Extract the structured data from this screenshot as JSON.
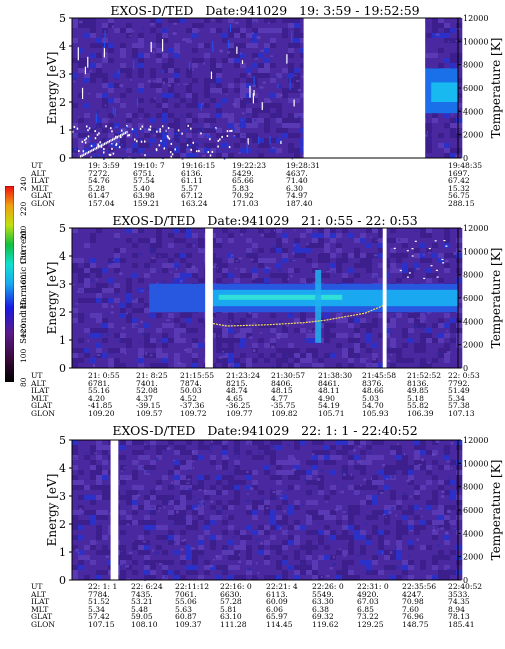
{
  "colorbar": {
    "label": "Second Harmonic Current",
    "ticks": [
      "80",
      "100",
      "120",
      "140",
      "160",
      "180",
      "200",
      "220",
      "240"
    ]
  },
  "panels": [
    {
      "instrument": "EXOS-D/TED",
      "date": "Date:941029",
      "time_range": "19: 3:59 - 19:52:59",
      "ephemeris_labels": [
        "UT",
        "ALT",
        "ILAT",
        "MLT",
        "GLAT",
        "GLON"
      ],
      "ephemeris": [
        [
          "19: 3:59",
          "7272.",
          "54.76",
          "5.28",
          "61.47",
          "157.04"
        ],
        [
          "19:10: 7",
          "6751.",
          "57.54",
          "5.40",
          "63.98",
          "159.21"
        ],
        [
          "19:16:15",
          "6136.",
          "61.11",
          "5.57",
          "67.12",
          "163.24"
        ],
        [
          "19:22:23",
          "5429.",
          "65.66",
          "5.83",
          "70.92",
          "171.03"
        ],
        [
          "19:28:31",
          "4637.",
          "71.40",
          "6.30",
          "74.97",
          "187.40"
        ],
        [
          "19:48:35",
          "1697.",
          "67.42",
          "15.32",
          "56.75",
          "288.15"
        ]
      ]
    },
    {
      "instrument": "EXOS-D/TED",
      "date": "Date:941029",
      "time_range": "21: 0:55 - 22: 0:53",
      "ephemeris_labels": [
        "UT",
        "ALT",
        "ILAT",
        "MLT",
        "GLAT",
        "GLON"
      ],
      "ephemeris": [
        [
          "21: 0:55",
          "6781.",
          "55.16",
          "4.20",
          "-41.85",
          "109.20"
        ],
        [
          "21: 8:25",
          "7401.",
          "52.08",
          "4.37",
          "-39.15",
          "109.57"
        ],
        [
          "21:15:55",
          "7874.",
          "50.03",
          "4.52",
          "-37.36",
          "109.72"
        ],
        [
          "21:23:24",
          "8215.",
          "48.74",
          "4.65",
          "-36.25",
          "109.77"
        ],
        [
          "21:30:57",
          "8406.",
          "48.15",
          "4.77",
          "-35.75",
          "109.82"
        ],
        [
          "21:38:30",
          "8461.",
          "48.11",
          "4.90",
          "54.19",
          "105.71"
        ],
        [
          "21:45:58",
          "8376.",
          "48.66",
          "5.03",
          "54.70",
          "105.93"
        ],
        [
          "21:52:52",
          "8136.",
          "49.85",
          "5.18",
          "55.82",
          "106.39"
        ],
        [
          "22: 0:53",
          "7792.",
          "51.49",
          "5.34",
          "57.38",
          "107.13"
        ]
      ]
    },
    {
      "instrument": "EXOS-D/TED",
      "date": "Date:941029",
      "time_range": "22: 1: 1 - 22:40:52",
      "ephemeris_labels": [
        "UT",
        "ALT",
        "ILAT",
        "MLT",
        "GLAT",
        "GLON"
      ],
      "ephemeris": [
        [
          "22: 1: 1",
          "7784.",
          "51.52",
          "5.34",
          "57.42",
          "107.15"
        ],
        [
          "22: 6:24",
          "7435.",
          "53.21",
          "5.48",
          "59.05",
          "108.10"
        ],
        [
          "22:11:12",
          "7061.",
          "55.06",
          "5.63",
          "60.87",
          "109.37"
        ],
        [
          "22:16: 0",
          "6630.",
          "57.28",
          "5.81",
          "63.10",
          "111.28"
        ],
        [
          "22:21: 4",
          "6113.",
          "60.09",
          "6.06",
          "65.97",
          "114.45"
        ],
        [
          "22:26: 0",
          "5549.",
          "63.30",
          "6.38",
          "69.32",
          "119.62"
        ],
        [
          "22:31: 0",
          "4920.",
          "67.03",
          "6.85",
          "73.22",
          "129.25"
        ],
        [
          "22:35:56",
          "4247.",
          "70.98",
          "7.60",
          "76.96",
          "148.75"
        ],
        [
          "22:40:52",
          "3533.",
          "74.35",
          "8.94",
          "78.13",
          "185.41"
        ]
      ]
    }
  ],
  "chart_data": [
    {
      "type": "heatmap",
      "title": "EXOS-D/TED  Date:941029  19: 3:59 - 19:52:59",
      "ylabel": "Energy [eV]",
      "y2label": "Temperature [K]",
      "ylim": [
        0,
        5
      ],
      "y2lim": [
        0,
        12000
      ],
      "yticks": [
        "0",
        "1",
        "2",
        "3",
        "4",
        "5"
      ],
      "y2ticks": [
        "0",
        "2000",
        "4000",
        "6000",
        "8000",
        "10000",
        "12000"
      ],
      "data_gaps_fraction": [
        [
          0.6,
          0.915
        ]
      ],
      "notes_series": "dense intensity at low energy with scattered vertical spikes; ion band near 2-3 eV at end"
    },
    {
      "type": "heatmap",
      "title": "EXOS-D/TED  Date:941029  21: 0:55 - 22: 0:53",
      "ylabel": "Energy [eV]",
      "y2label": "Temperature [K]",
      "ylim": [
        0,
        5
      ],
      "y2lim": [
        0,
        12000
      ],
      "yticks": [
        "0",
        "1",
        "2",
        "3",
        "4",
        "5"
      ],
      "y2ticks": [
        "0",
        "2000",
        "4000",
        "6000",
        "8000",
        "10000",
        "12000"
      ],
      "data_gaps_fraction": [
        [
          0.345,
          0.365
        ],
        [
          0.805,
          0.815
        ]
      ],
      "band_energy_range": [
        2.1,
        2.9
      ],
      "temperature_trace_K": [
        3900,
        3600,
        3650,
        3700,
        3800,
        3900,
        4100,
        4400,
        4700,
        5400
      ]
    },
    {
      "type": "heatmap",
      "title": "EXOS-D/TED  Date:941029  22: 1: 1 - 22:40:52",
      "ylabel": "Energy [eV]",
      "y2label": "Temperature [K]",
      "ylim": [
        0,
        5
      ],
      "y2lim": [
        0,
        12000
      ],
      "yticks": [
        "0",
        "1",
        "2",
        "3",
        "4",
        "5"
      ],
      "y2ticks": [
        "0",
        "2000",
        "4000",
        "6000",
        "8000",
        "10000",
        "12000"
      ],
      "data_gaps_fraction": [
        [
          0.1,
          0.12
        ]
      ]
    }
  ]
}
